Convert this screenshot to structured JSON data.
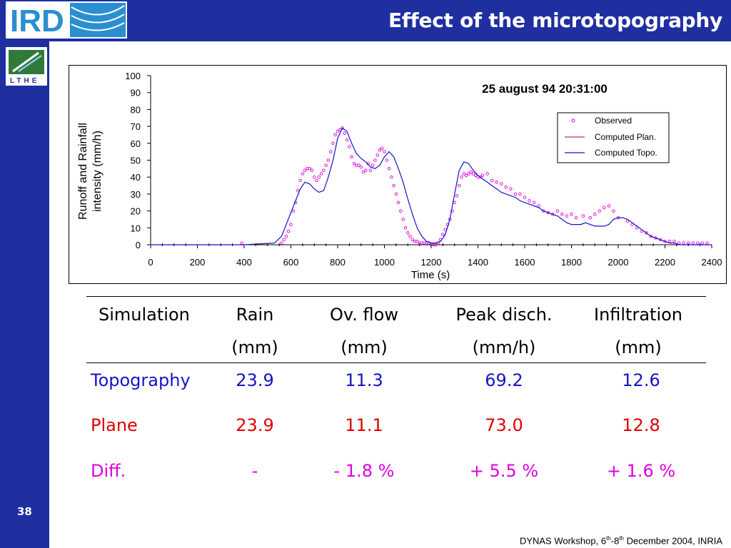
{
  "slide": {
    "title": "Effect of the microtopography",
    "number": "38",
    "footer_prefix": "DYNAS Workshop, 6",
    "footer_sup1": "th",
    "footer_mid": "-8",
    "footer_sup2": "th",
    "footer_suffix": " December 2004, INRIA",
    "logos": {
      "top": "IRD",
      "left": "LTHE"
    },
    "colors": {
      "bar": "#1f2fa0",
      "topography": "#1414c8",
      "plane": "#e00000",
      "diff": "#e000e0"
    }
  },
  "chart_data": {
    "type": "line",
    "title": "25 august 94 20:31:00",
    "xlabel": "Time  (s)",
    "ylabel_line1": "Runoff and Rainfall",
    "ylabel_line2": "intensity (mm/h)",
    "xlim": [
      0,
      2400
    ],
    "ylim": [
      0,
      100
    ],
    "xticks": [
      0,
      200,
      400,
      600,
      800,
      1000,
      1200,
      1400,
      1600,
      1800,
      2000,
      2200,
      2400
    ],
    "yticks": [
      0,
      10,
      20,
      30,
      40,
      50,
      60,
      70,
      80,
      90,
      100
    ],
    "legend_position": "top-right",
    "grid": false,
    "series": [
      {
        "name": "Observed",
        "kind": "markers",
        "color": "#e000e0",
        "x": [
          390,
          560,
          570,
          580,
          590,
          600,
          610,
          620,
          630,
          640,
          650,
          660,
          670,
          680,
          690,
          700,
          710,
          720,
          730,
          740,
          750,
          760,
          770,
          780,
          790,
          800,
          810,
          820,
          830,
          840,
          850,
          860,
          870,
          880,
          890,
          900,
          910,
          920,
          930,
          940,
          950,
          960,
          970,
          980,
          990,
          1000,
          1010,
          1020,
          1030,
          1040,
          1050,
          1060,
          1070,
          1080,
          1090,
          1100,
          1110,
          1120,
          1130,
          1140,
          1150,
          1160,
          1170,
          1180,
          1190,
          1200,
          1210,
          1220,
          1230,
          1240,
          1250,
          1260,
          1270,
          1280,
          1290,
          1300,
          1310,
          1320,
          1330,
          1340,
          1350,
          1360,
          1370,
          1380,
          1390,
          1400,
          1410,
          1420,
          1440,
          1460,
          1480,
          1500,
          1520,
          1540,
          1560,
          1580,
          1600,
          1620,
          1640,
          1660,
          1680,
          1700,
          1720,
          1740,
          1760,
          1780,
          1800,
          1820,
          1850,
          1880,
          1900,
          1920,
          1940,
          1960,
          1980,
          2000,
          2040,
          2060,
          2080,
          2100,
          2120,
          2140,
          2160,
          2180,
          2200,
          2220,
          2240,
          2260,
          2280,
          2300,
          2320,
          2340,
          2360,
          2380
        ],
        "y": [
          1,
          1,
          3,
          5,
          8,
          12,
          20,
          25,
          32,
          38,
          42,
          44,
          45,
          45,
          44,
          40,
          38,
          40,
          42,
          44,
          47,
          50,
          55,
          60,
          65,
          67,
          68,
          69,
          66,
          62,
          58,
          52,
          48,
          47,
          47,
          46,
          43,
          44,
          48,
          44,
          47,
          50,
          53,
          56,
          57,
          55,
          50,
          45,
          40,
          35,
          30,
          25,
          20,
          15,
          10,
          7,
          5,
          3,
          2,
          2,
          1,
          1,
          1,
          1,
          1,
          0,
          0,
          0,
          1,
          3,
          6,
          9,
          12,
          15,
          20,
          25,
          29,
          35,
          40,
          42,
          41,
          42,
          43,
          42,
          41,
          40,
          40,
          41,
          42,
          38,
          37,
          36,
          34,
          33,
          30,
          30,
          28,
          26,
          25,
          23,
          20,
          19,
          18,
          20,
          18,
          17,
          18,
          16,
          17,
          16,
          18,
          20,
          22,
          23,
          20,
          16,
          14,
          12,
          10,
          8,
          7,
          5,
          4,
          3,
          2,
          2,
          2,
          1,
          1,
          1,
          1,
          1,
          1,
          1
        ]
      },
      {
        "name": "Computed Plan.",
        "kind": "line",
        "color": "#c00000",
        "x": [],
        "y": []
      },
      {
        "name": "Computed Topo.",
        "kind": "line",
        "color": "#1414c8",
        "x": [
          0,
          400,
          530,
          560,
          600,
          640,
          660,
          680,
          700,
          720,
          740,
          760,
          780,
          800,
          820,
          840,
          860,
          880,
          900,
          920,
          940,
          960,
          980,
          1000,
          1020,
          1040,
          1060,
          1080,
          1100,
          1120,
          1140,
          1160,
          1180,
          1200,
          1220,
          1240,
          1260,
          1280,
          1300,
          1320,
          1340,
          1360,
          1380,
          1400,
          1420,
          1440,
          1460,
          1480,
          1500,
          1520,
          1540,
          1560,
          1580,
          1600,
          1620,
          1640,
          1660,
          1680,
          1700,
          1720,
          1740,
          1760,
          1780,
          1800,
          1820,
          1840,
          1860,
          1880,
          1900,
          1920,
          1940,
          1960,
          1980,
          2000,
          2020,
          2040,
          2060,
          2080,
          2100,
          2120,
          2140,
          2160,
          2180,
          2200,
          2220,
          2240,
          2260,
          2280,
          2400
        ],
        "y": [
          0,
          0,
          1,
          5,
          19,
          33,
          37,
          36,
          33,
          31,
          32,
          40,
          50,
          63,
          69,
          67,
          60,
          54,
          51,
          49,
          46,
          45,
          47,
          52,
          55,
          52,
          45,
          37,
          27,
          18,
          10,
          5,
          2,
          1,
          1,
          2,
          6,
          15,
          30,
          44,
          49,
          48,
          44,
          41,
          39,
          37,
          35,
          33,
          31,
          30,
          29,
          28,
          26,
          25,
          24,
          23,
          22,
          20,
          19,
          18,
          17,
          15,
          13,
          12,
          12,
          12,
          13,
          12,
          11,
          11,
          11,
          12,
          15,
          16,
          16,
          15,
          13,
          11,
          9,
          7,
          5,
          4,
          3,
          2,
          1,
          1,
          0,
          0,
          0
        ]
      }
    ]
  },
  "table": {
    "headers": [
      {
        "line1": "Simulation",
        "line2": ""
      },
      {
        "line1": "Rain",
        "line2": "(mm)"
      },
      {
        "line1": "Ov. flow",
        "line2": "(mm)"
      },
      {
        "line1": "Peak disch.",
        "line2": "(mm/h)"
      },
      {
        "line1": "Infiltration",
        "line2": "(mm)"
      }
    ],
    "rows": [
      {
        "label": "Topography",
        "rain": "23.9",
        "ov_flow": "11.3",
        "peak": "69.2",
        "infiltration": "12.6"
      },
      {
        "label": "Plane",
        "rain": "23.9",
        "ov_flow": "11.1",
        "peak": "73.0",
        "infiltration": "12.8"
      },
      {
        "label": "Diff.",
        "rain": "-",
        "ov_flow": "- 1.8 %",
        "peak": "+ 5.5 %",
        "infiltration": "+ 1.6 %"
      }
    ]
  }
}
